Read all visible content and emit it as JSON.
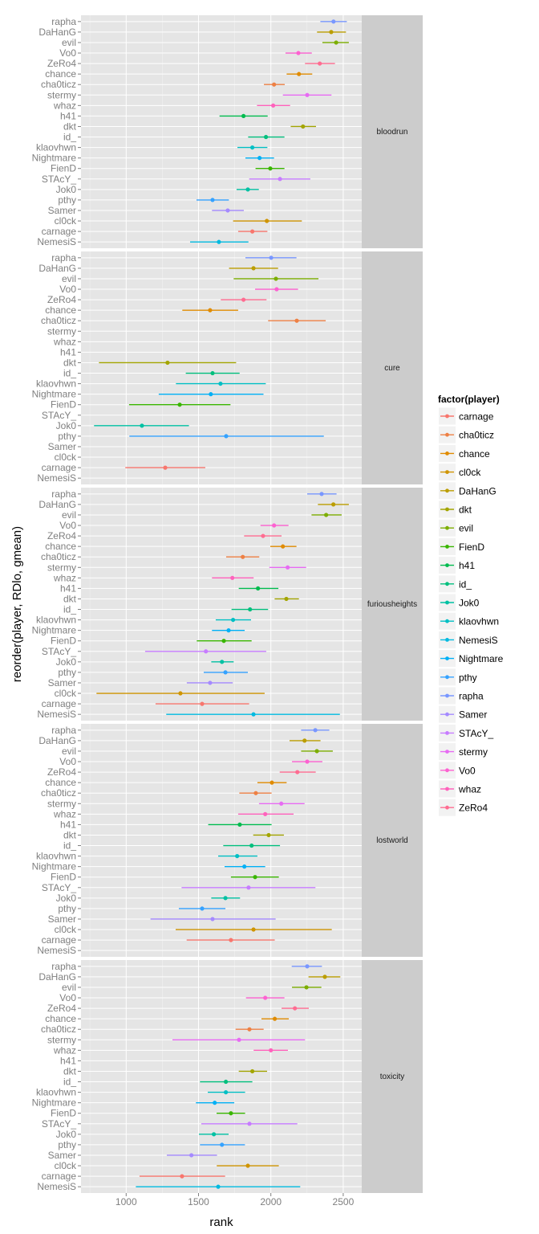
{
  "chart_data": {
    "type": "scatter",
    "subtype": "pointrange-faceted",
    "xlabel": "rank",
    "ylabel": "reorder(player, RDlo, gmean)",
    "xlim": [
      688,
      2628
    ],
    "xticks": [
      1000,
      1500,
      2000,
      2500
    ],
    "xtick_labels": [
      "1000",
      "1500",
      "2000",
      "2500"
    ],
    "grid": true,
    "legend": {
      "title": "factor(player)",
      "position": "right",
      "entries": [
        "carnage",
        "cha0ticz",
        "chance",
        "cl0ck",
        "DaHanG",
        "dkt",
        "evil",
        "FienD",
        "h41",
        "id_",
        "Jok0",
        "klaovhwn",
        "NemesiS",
        "Nightmare",
        "pthy",
        "rapha",
        "Samer",
        "STAcY_",
        "stermy",
        "Vo0",
        "whaz",
        "ZeRo4"
      ]
    },
    "colors": {
      "carnage": "#F8766D",
      "cha0ticz": "#EE8044",
      "chance": "#E08B00",
      "cl0ck": "#CF9400",
      "DaHanG": "#BB9D00",
      "dkt": "#A3A500",
      "evil": "#7CAE00",
      "FienD": "#39B600",
      "h41": "#00BB4E",
      "id_": "#00BF7D",
      "Jok0": "#00C1A3",
      "klaovhwn": "#00BFC4",
      "NemesiS": "#00BAE0",
      "Nightmare": "#00B0F6",
      "pthy": "#35A2FF",
      "rapha": "#7997FF",
      "Samer": "#A58AFF",
      "STAcY_": "#C77CFF",
      "stermy": "#E76BF3",
      "Vo0": "#FD61D1",
      "whaz": "#FF62BC",
      "ZeRo4": "#FF6C91"
    },
    "players": [
      "rapha",
      "DaHanG",
      "evil",
      "Vo0",
      "ZeRo4",
      "chance",
      "cha0ticz",
      "stermy",
      "whaz",
      "h41",
      "dkt",
      "id_",
      "klaovhwn",
      "Nightmare",
      "FienD",
      "STAcY_",
      "Jok0",
      "pthy",
      "Samer",
      "cl0ck",
      "carnage",
      "NemesiS"
    ],
    "series_fields": [
      "lo",
      "mean",
      "hi"
    ],
    "facets": [
      {
        "name": "bloodrun",
        "values": [
          [
            2342,
            2433,
            2525
          ],
          [
            2319,
            2417,
            2519
          ],
          [
            2356,
            2451,
            2539
          ],
          [
            2101,
            2190,
            2283
          ],
          [
            2236,
            2338,
            2443
          ],
          [
            2109,
            2194,
            2286
          ],
          [
            1952,
            2022,
            2096
          ],
          [
            2083,
            2251,
            2419
          ],
          [
            1904,
            2016,
            2133
          ],
          [
            1645,
            1811,
            1978
          ],
          [
            2137,
            2222,
            2312
          ],
          [
            1843,
            1966,
            2094
          ],
          [
            1769,
            1872,
            1976
          ],
          [
            1824,
            1922,
            2022
          ],
          [
            1894,
            1996,
            2094
          ],
          [
            1850,
            2063,
            2273
          ],
          [
            1763,
            1841,
            1917
          ],
          [
            1486,
            1597,
            1710
          ],
          [
            1593,
            1702,
            1813
          ],
          [
            1739,
            1972,
            2214
          ],
          [
            1774,
            1872,
            1976
          ],
          [
            1442,
            1641,
            1845
          ]
        ]
      },
      {
        "name": "cure",
        "values": [
          [
            1824,
            2002,
            2177
          ],
          [
            1711,
            1880,
            2050
          ],
          [
            1743,
            2035,
            2329
          ],
          [
            1891,
            2040,
            2188
          ],
          [
            1654,
            1811,
            1970
          ],
          [
            1388,
            1580,
            1774
          ],
          [
            1981,
            2179,
            2379
          ],
          null,
          null,
          null,
          [
            812,
            1286,
            1760
          ],
          [
            1412,
            1597,
            1784
          ],
          [
            1344,
            1652,
            1965
          ],
          [
            1225,
            1585,
            1949
          ],
          [
            1020,
            1370,
            1721
          ],
          null,
          [
            778,
            1109,
            1434
          ],
          [
            1022,
            1691,
            2366
          ],
          null,
          null,
          [
            994,
            1270,
            1547
          ],
          null
        ]
      },
      {
        "name": "furiousheights",
        "values": [
          [
            2251,
            2351,
            2454
          ],
          [
            2325,
            2432,
            2539
          ],
          [
            2281,
            2382,
            2489
          ],
          [
            1928,
            2022,
            2122
          ],
          [
            1815,
            1946,
            2074
          ],
          [
            1996,
            2083,
            2177
          ],
          [
            1691,
            1806,
            1920
          ],
          [
            1989,
            2116,
            2244
          ],
          [
            1593,
            1734,
            1881
          ],
          [
            1778,
            1911,
            2052
          ],
          [
            2026,
            2107,
            2194
          ],
          [
            1728,
            1856,
            1981
          ],
          [
            1619,
            1739,
            1863
          ],
          [
            1593,
            1708,
            1819
          ],
          [
            1488,
            1675,
            1867
          ],
          [
            1131,
            1551,
            1968
          ],
          [
            1588,
            1662,
            1743
          ],
          [
            1536,
            1686,
            1841
          ],
          [
            1419,
            1580,
            1737
          ],
          [
            795,
            1375,
            1957
          ],
          [
            1203,
            1525,
            1850
          ],
          [
            1277,
            1880,
            2477
          ]
        ]
      },
      {
        "name": "lostworld",
        "values": [
          [
            2209,
            2307,
            2404
          ],
          [
            2129,
            2233,
            2343
          ],
          [
            2209,
            2318,
            2428
          ],
          [
            2146,
            2251,
            2356
          ],
          [
            2061,
            2183,
            2310
          ],
          [
            1907,
            2007,
            2109
          ],
          [
            1782,
            1896,
            2005
          ],
          [
            1918,
            2072,
            2233
          ],
          [
            1774,
            1961,
            2157
          ],
          [
            1567,
            1785,
            2005
          ],
          [
            1878,
            1985,
            2090
          ],
          [
            1671,
            1867,
            2063
          ],
          [
            1636,
            1767,
            1907
          ],
          [
            1680,
            1817,
            1961
          ],
          [
            1724,
            1891,
            2055
          ],
          [
            1383,
            1846,
            2308
          ],
          [
            1588,
            1686,
            1787
          ],
          [
            1364,
            1525,
            1686
          ],
          [
            1168,
            1597,
            2033
          ],
          [
            1342,
            1880,
            2421
          ],
          [
            1418,
            1724,
            2027
          ],
          null
        ]
      },
      {
        "name": "toxicity",
        "values": [
          [
            2144,
            2251,
            2353
          ],
          [
            2260,
            2373,
            2480
          ],
          [
            2146,
            2246,
            2349
          ],
          [
            1828,
            1961,
            2094
          ],
          [
            2074,
            2166,
            2262
          ],
          [
            1935,
            2027,
            2124
          ],
          [
            1756,
            1852,
            1950
          ],
          [
            1320,
            1780,
            2236
          ],
          [
            1881,
            2000,
            2118
          ],
          null,
          [
            1778,
            1872,
            1974
          ],
          [
            1510,
            1689,
            1872
          ],
          [
            1564,
            1689,
            1822
          ],
          [
            1482,
            1612,
            1747
          ],
          [
            1625,
            1724,
            1822
          ],
          [
            1519,
            1852,
            2183
          ],
          [
            1503,
            1606,
            1708
          ],
          [
            1510,
            1662,
            1821
          ],
          [
            1281,
            1451,
            1628
          ],
          [
            1626,
            1841,
            2055
          ],
          [
            1092,
            1386,
            1684
          ],
          [
            1067,
            1636,
            2203
          ]
        ]
      }
    ]
  }
}
